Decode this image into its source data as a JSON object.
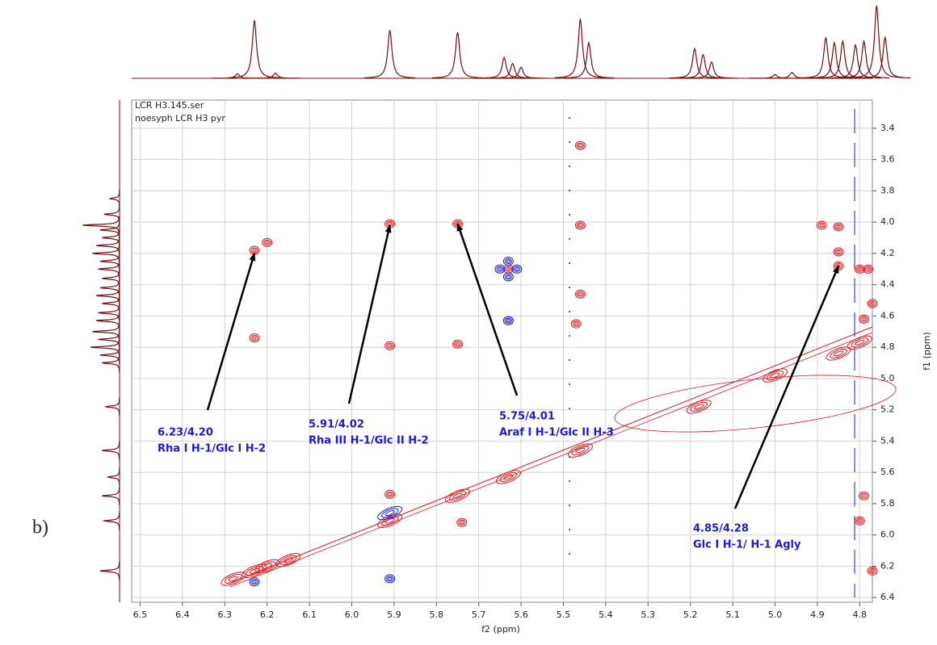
{
  "chart_data": {
    "type": "contour",
    "spectrum_name": "LCR H3.145.ser",
    "experiment": "noesyph  LCR H3 pyr",
    "panel_label": "b)",
    "x_label": "f2 (ppm)",
    "y_label": "f1 (ppm)",
    "xlim": [
      6.52,
      4.77
    ],
    "ylim": [
      3.22,
      6.43
    ],
    "xticks": [
      6.5,
      6.4,
      6.3,
      6.2,
      6.1,
      {
        "value": 6,
        "label": "6.0"
      },
      5.9,
      5.8,
      5.7,
      5.6,
      5.5,
      5.4,
      5.3,
      5.2,
      5.1,
      {
        "value": 5,
        "label": "5.0"
      },
      4.9,
      4.8
    ],
    "yticks": [
      3.4,
      3.6,
      3.8,
      {
        "value": 4,
        "label": "4.0"
      },
      4.2,
      4.4,
      4.6,
      4.8,
      {
        "value": 5,
        "label": "5.0"
      },
      5.2,
      5.4,
      5.6,
      5.8,
      {
        "value": 6,
        "label": "6.0"
      },
      6.2,
      6.4
    ],
    "grid": true,
    "series": [
      {
        "color": "#e8141a",
        "x": [
          6.23,
          6.2,
          6.23,
          5.91,
          5.91,
          5.75,
          5.75,
          5.63,
          5.63,
          5.46,
          5.46,
          5.46,
          5.47,
          4.85,
          4.85,
          4.85,
          4.89,
          4.8,
          4.78,
          4.77,
          4.79,
          4.8,
          4.79,
          4.77,
          5.91,
          5.74,
          6.23,
          6.2,
          6.15,
          6.28,
          5.91,
          5.75,
          5.63,
          5.46,
          5.18,
          5.0,
          4.85,
          4.8
        ],
        "y": [
          4.18,
          4.13,
          4.74,
          4.01,
          4.79,
          4.01,
          4.78,
          4.3,
          4.63,
          3.51,
          4.02,
          4.46,
          4.65,
          4.03,
          4.19,
          4.28,
          4.02,
          4.3,
          4.3,
          4.52,
          4.62,
          5.91,
          5.75,
          6.23,
          5.74,
          5.92,
          6.23,
          6.2,
          6.16,
          6.28,
          5.91,
          5.75,
          5.63,
          5.46,
          5.18,
          4.98,
          4.84,
          4.77
        ]
      },
      {
        "color": "#1a1ae6",
        "x": [
          5.63,
          5.63,
          5.61,
          5.65,
          5.63,
          6.23,
          5.91,
          5.91
        ],
        "y": [
          4.25,
          4.35,
          4.3,
          4.3,
          4.63,
          6.3,
          5.86,
          6.28
        ]
      }
    ],
    "annotations": [
      {
        "shift": "6.23/4.20",
        "label": "Rha I H-1/Glc I H-2",
        "x": 6.23,
        "y": 4.2
      },
      {
        "shift": "5.91/4.02",
        "label": "Rha III H-1/Glc II H-2",
        "x": 5.91,
        "y": 4.02
      },
      {
        "shift": "5.75/4.01",
        "label": "Araf I H-1/Glc II H-3",
        "x": 5.75,
        "y": 4.01
      },
      {
        "shift": "4.85/4.28",
        "label": "Glc I H-1/ H-1 Agly",
        "x": 4.85,
        "y": 4.28
      }
    ],
    "projection_color": "#7a0c0c",
    "f2_projection": {
      "ppm": [
        6.27,
        6.23,
        6.18,
        5.91,
        5.75,
        5.64,
        5.62,
        5.6,
        5.46,
        5.44,
        5.19,
        5.17,
        5.15,
        5.0,
        4.96,
        4.88,
        4.86,
        4.84,
        4.81,
        4.79,
        4.76,
        4.74
      ],
      "height": [
        0.06,
        0.78,
        0.07,
        0.65,
        0.62,
        0.28,
        0.2,
        0.15,
        0.8,
        0.48,
        0.4,
        0.32,
        0.22,
        0.05,
        0.08,
        0.55,
        0.48,
        0.5,
        0.45,
        0.5,
        0.98,
        0.55
      ]
    },
    "f1_projection": {
      "ppm": [
        3.85,
        3.95,
        4.02,
        4.05,
        4.1,
        4.15,
        4.2,
        4.25,
        4.3,
        4.36,
        4.42,
        4.47,
        4.52,
        4.58,
        4.63,
        4.7,
        4.75,
        4.8,
        4.85,
        4.9,
        5.18,
        5.46,
        5.63,
        5.75,
        5.91,
        6.23
      ],
      "height": [
        0.25,
        0.4,
        0.95,
        0.5,
        0.45,
        0.6,
        0.7,
        0.5,
        0.55,
        0.45,
        0.5,
        0.6,
        0.45,
        0.55,
        0.6,
        0.7,
        0.55,
        0.75,
        0.5,
        0.45,
        0.35,
        0.45,
        0.3,
        0.45,
        0.4,
        0.5
      ]
    }
  }
}
